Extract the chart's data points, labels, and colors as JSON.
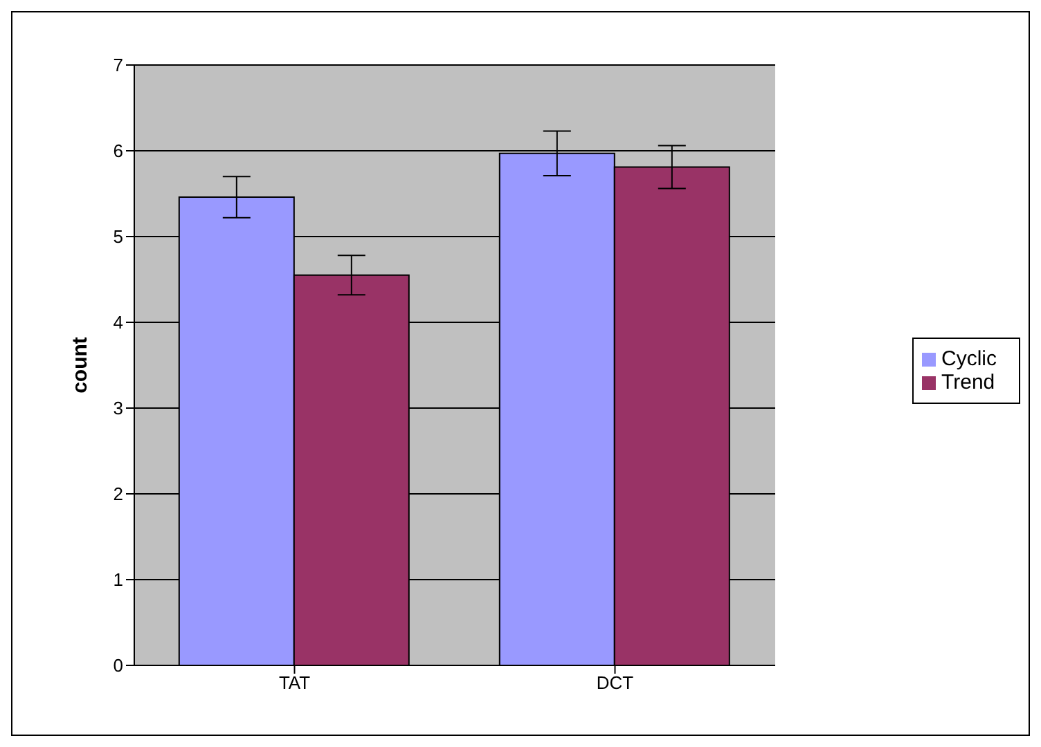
{
  "chart_data": {
    "type": "bar",
    "ylabel": "count",
    "categories": [
      "TAT",
      "DCT"
    ],
    "series": [
      {
        "name": "Cyclic",
        "color": "#9999ff",
        "values": [
          5.46,
          5.97
        ],
        "errors": [
          0.24,
          0.26
        ]
      },
      {
        "name": "Trend",
        "color": "#993366",
        "values": [
          4.55,
          5.81
        ],
        "errors": [
          0.23,
          0.25
        ]
      }
    ],
    "ylim": [
      0,
      7
    ],
    "yticks": [
      0,
      1,
      2,
      3,
      4,
      5,
      6,
      7
    ],
    "grid": "y",
    "legend": "right"
  }
}
